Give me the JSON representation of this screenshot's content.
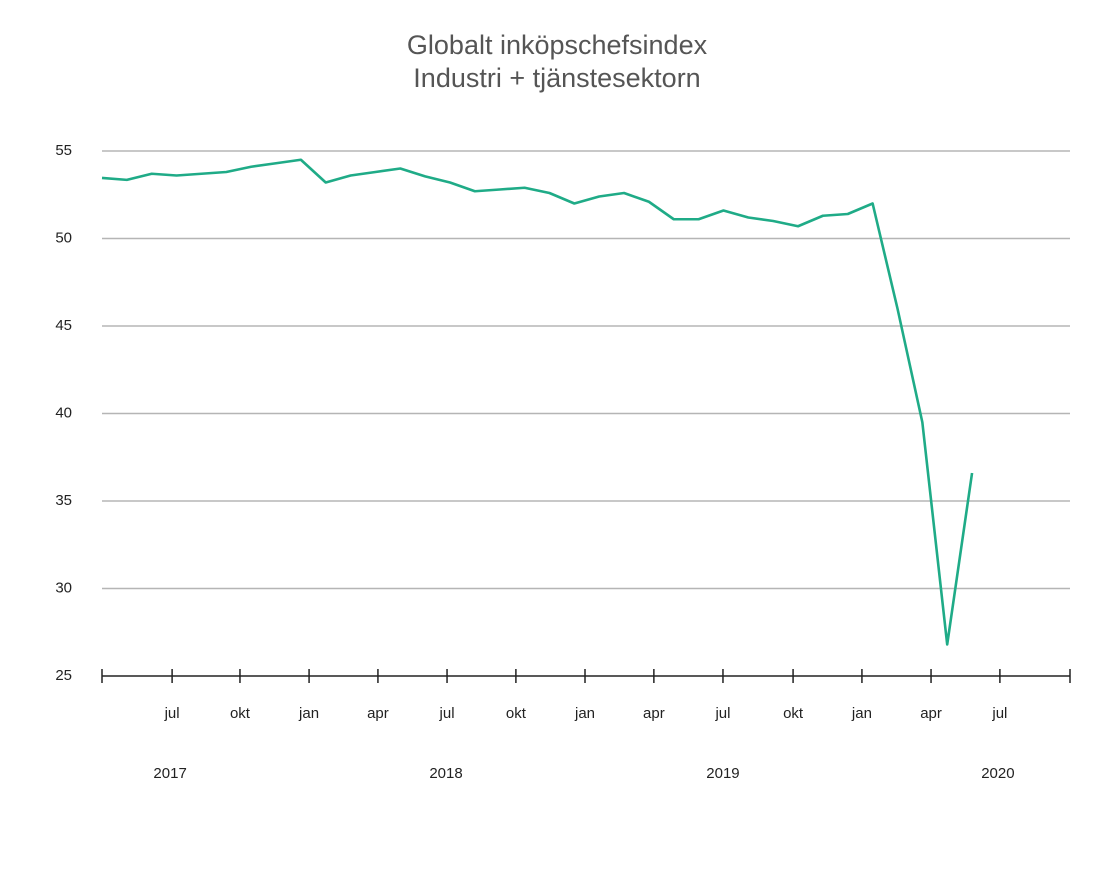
{
  "chart_data": {
    "type": "line",
    "title": "Globalt inköpschefsindex",
    "subtitle": "Industri + tjänstesektorn",
    "x": [
      0,
      1,
      2,
      3,
      4,
      5,
      6,
      7,
      8,
      9,
      10,
      11,
      12,
      13,
      14,
      15,
      16,
      17,
      18,
      19,
      20,
      21,
      22,
      23,
      24,
      25,
      26,
      27,
      28,
      29,
      30,
      31,
      32,
      33,
      34,
      35
    ],
    "series": [
      {
        "color": "#1fab87",
        "values": [
          53.46,
          53.35,
          53.7,
          53.6,
          53.7,
          53.8,
          54.1,
          54.3,
          54.5,
          53.2,
          53.6,
          53.8,
          54.0,
          53.55,
          53.2,
          52.7,
          52.8,
          52.9,
          52.6,
          52.0,
          52.4,
          52.6,
          52.1,
          51.1,
          51.1,
          51.6,
          51.2,
          51.0,
          50.7,
          51.3,
          51.4,
          52.0,
          46.0,
          39.5,
          26.8,
          36.6
        ]
      }
    ],
    "xlim": [
      0,
      38.94
    ],
    "xticks": [
      {
        "value": 2.82,
        "label": "jul"
      },
      {
        "value": 5.55,
        "label": "okt"
      },
      {
        "value": 8.33,
        "label": "jan"
      },
      {
        "value": 11.1,
        "label": "apr"
      },
      {
        "value": 13.88,
        "label": "jul"
      },
      {
        "value": 16.65,
        "label": "okt"
      },
      {
        "value": 19.43,
        "label": "jan"
      },
      {
        "value": 22.2,
        "label": "apr"
      },
      {
        "value": 24.98,
        "label": "jul"
      },
      {
        "value": 27.8,
        "label": "okt"
      },
      {
        "value": 30.57,
        "label": "jan"
      },
      {
        "value": 33.35,
        "label": "apr"
      },
      {
        "value": 36.12,
        "label": "jul"
      }
    ],
    "year_labels": [
      {
        "value": 2.74,
        "label": "2017"
      },
      {
        "value": 13.84,
        "label": "2018"
      },
      {
        "value": 24.98,
        "label": "2019"
      },
      {
        "value": 36.04,
        "label": "2020"
      }
    ],
    "ylim": [
      25,
      55
    ],
    "yticks": [
      25,
      30,
      35,
      40,
      45,
      50,
      55
    ],
    "grid": true
  }
}
